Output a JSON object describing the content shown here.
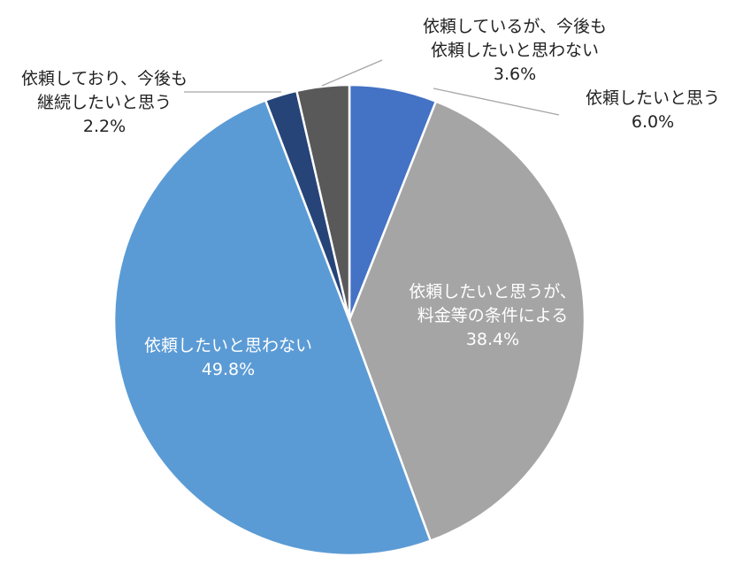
{
  "chart_data": {
    "type": "pie",
    "start_angle_deg": 0,
    "direction": "clockwise",
    "slices": [
      {
        "label_lines": [
          "依頼したいと思う"
        ],
        "value": 6.0,
        "percent_label": "6.0%",
        "color": "#4472c4",
        "label_color": "#222222",
        "callout": true
      },
      {
        "label_lines": [
          "依頼したいと思うが、",
          "料金等の条件による"
        ],
        "value": 38.4,
        "percent_label": "38.4%",
        "color": "#a5a5a5",
        "label_color": "#ffffff",
        "callout": false
      },
      {
        "label_lines": [
          "依頼したいと思わない"
        ],
        "value": 49.8,
        "percent_label": "49.8%",
        "color": "#5b9bd5",
        "label_color": "#ffffff",
        "callout": false
      },
      {
        "label_lines": [
          "依頼しており、今後も",
          "継続したいと思う"
        ],
        "value": 2.2,
        "percent_label": "2.2%",
        "color": "#264478",
        "label_color": "#222222",
        "callout": true
      },
      {
        "label_lines": [
          "依頼しているが、今後も",
          "依頼したいと思わない"
        ],
        "value": 3.6,
        "percent_label": "3.6%",
        "color": "#595959",
        "label_color": "#222222",
        "callout": true
      }
    ]
  }
}
